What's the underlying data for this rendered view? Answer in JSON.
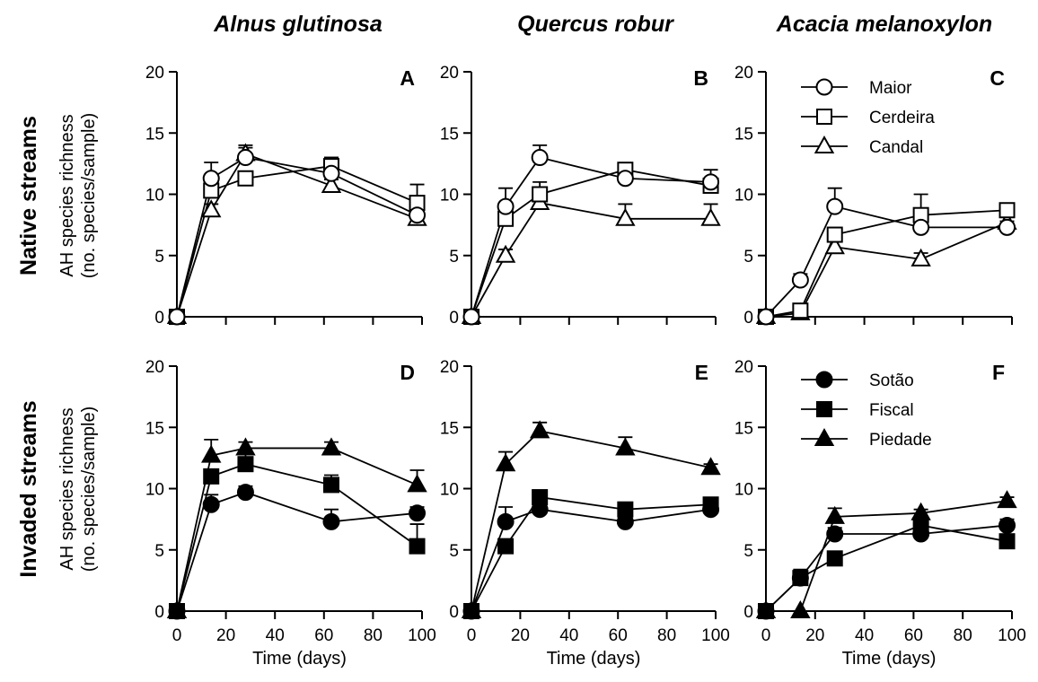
{
  "column_titles": [
    "Alnus glutinosa",
    "Quercus robur",
    "Acacia melanoxylon"
  ],
  "row_titles": [
    "Native streams",
    "Invaded streams"
  ],
  "ylabel_lines": [
    "AH species richness",
    "(no. species/sample)"
  ],
  "legend_native": [
    {
      "name": "Maior",
      "marker": "circle",
      "filled": false
    },
    {
      "name": "Cerdeira",
      "marker": "square",
      "filled": false
    },
    {
      "name": "Candal",
      "marker": "triangle",
      "filled": false
    }
  ],
  "legend_invaded": [
    {
      "name": "Sotão",
      "marker": "circle",
      "filled": true
    },
    {
      "name": "Fiscal",
      "marker": "square",
      "filled": true
    },
    {
      "name": "Piedade",
      "marker": "triangle",
      "filled": true
    }
  ],
  "chart_data": [
    {
      "panel": "A",
      "type": "line",
      "xlabel": "",
      "ylim": [
        0,
        20
      ],
      "xlim": [
        0,
        100
      ],
      "yticks": [
        0,
        5,
        10,
        15,
        20
      ],
      "xticks": [],
      "x": [
        0,
        14,
        28,
        63,
        98
      ],
      "series": [
        {
          "name": "Maior",
          "marker": "circle",
          "filled": false,
          "values": [
            0,
            11.3,
            13.0,
            11.7,
            8.3
          ],
          "err": [
            0,
            1.3,
            1.0,
            1.3,
            0.7
          ]
        },
        {
          "name": "Cerdeira",
          "marker": "square",
          "filled": false,
          "values": [
            0,
            10.3,
            11.3,
            12.3,
            9.3
          ],
          "err": [
            0,
            0.5,
            0.5,
            0.7,
            1.5
          ]
        },
        {
          "name": "Candal",
          "marker": "triangle",
          "filled": false,
          "values": [
            0,
            8.7,
            13.3,
            10.7,
            8.0
          ],
          "err": [
            0,
            0.5,
            0.5,
            0.5,
            0.5
          ]
        }
      ]
    },
    {
      "panel": "B",
      "type": "line",
      "xlabel": "",
      "ylim": [
        0,
        20
      ],
      "xlim": [
        0,
        100
      ],
      "yticks": [
        0,
        5,
        10,
        15,
        20
      ],
      "xticks": [],
      "x": [
        0,
        14,
        28,
        63,
        98
      ],
      "series": [
        {
          "name": "Maior",
          "marker": "circle",
          "filled": false,
          "values": [
            0,
            9.0,
            13.0,
            11.3,
            11.0
          ],
          "err": [
            0,
            1.5,
            1.0,
            0.5,
            1.0
          ]
        },
        {
          "name": "Cerdeira",
          "marker": "square",
          "filled": false,
          "values": [
            0,
            8.0,
            10.0,
            12.0,
            10.7
          ],
          "err": [
            0,
            0.5,
            1.0,
            0.5,
            0.5
          ]
        },
        {
          "name": "Candal",
          "marker": "triangle",
          "filled": false,
          "values": [
            0,
            5.0,
            9.3,
            8.0,
            8.0
          ],
          "err": [
            0,
            0.5,
            0.5,
            1.2,
            1.2
          ]
        }
      ]
    },
    {
      "panel": "C",
      "type": "line",
      "xlabel": "",
      "ylim": [
        0,
        20
      ],
      "xlim": [
        0,
        100
      ],
      "yticks": [
        0,
        5,
        10,
        15,
        20
      ],
      "xticks": [],
      "x": [
        0,
        14,
        28,
        63,
        98
      ],
      "series": [
        {
          "name": "Maior",
          "marker": "circle",
          "filled": false,
          "values": [
            0,
            3.0,
            9.0,
            7.3,
            7.3
          ],
          "err": [
            0,
            0.5,
            1.5,
            0.5,
            0.5
          ]
        },
        {
          "name": "Cerdeira",
          "marker": "square",
          "filled": false,
          "values": [
            0,
            0.5,
            6.7,
            8.3,
            8.7
          ],
          "err": [
            0,
            0.5,
            0.5,
            1.7,
            0.5
          ]
        },
        {
          "name": "Candal",
          "marker": "triangle",
          "filled": false,
          "values": [
            0,
            0.3,
            5.7,
            4.7,
            7.7
          ],
          "err": [
            0,
            0.3,
            0.5,
            0.5,
            0.5
          ]
        }
      ]
    },
    {
      "panel": "D",
      "type": "line",
      "xlabel": "Time (days)",
      "ylim": [
        0,
        20
      ],
      "xlim": [
        0,
        100
      ],
      "yticks": [
        0,
        5,
        10,
        15,
        20
      ],
      "xticks": [
        0,
        20,
        40,
        60,
        80,
        100
      ],
      "x": [
        0,
        14,
        28,
        63,
        98
      ],
      "series": [
        {
          "name": "Sotão",
          "marker": "circle",
          "filled": true,
          "values": [
            0,
            8.7,
            9.7,
            7.3,
            8.0
          ],
          "err": [
            0,
            0.8,
            0.5,
            1.0,
            0.5
          ]
        },
        {
          "name": "Fiscal",
          "marker": "square",
          "filled": true,
          "values": [
            0,
            11.0,
            12.0,
            10.3,
            5.3
          ],
          "err": [
            0,
            0.5,
            1.0,
            0.8,
            1.8
          ]
        },
        {
          "name": "Piedade",
          "marker": "triangle",
          "filled": true,
          "values": [
            0,
            12.7,
            13.3,
            13.3,
            10.3
          ],
          "err": [
            0,
            1.3,
            0.5,
            0.5,
            1.2
          ]
        }
      ]
    },
    {
      "panel": "E",
      "type": "line",
      "xlabel": "Time (days)",
      "ylim": [
        0,
        20
      ],
      "xlim": [
        0,
        100
      ],
      "yticks": [
        0,
        5,
        10,
        15,
        20
      ],
      "xticks": [
        0,
        20,
        40,
        60,
        80,
        100
      ],
      "x": [
        0,
        14,
        28,
        63,
        98
      ],
      "series": [
        {
          "name": "Sotão",
          "marker": "circle",
          "filled": true,
          "values": [
            0,
            7.3,
            8.3,
            7.3,
            8.3
          ],
          "err": [
            0,
            1.2,
            0.5,
            0.5,
            0.5
          ]
        },
        {
          "name": "Fiscal",
          "marker": "square",
          "filled": true,
          "values": [
            0,
            5.3,
            9.3,
            8.3,
            8.7
          ],
          "err": [
            0,
            0.5,
            0.5,
            0.5,
            0.3
          ]
        },
        {
          "name": "Piedade",
          "marker": "triangle",
          "filled": true,
          "values": [
            0,
            12.0,
            14.7,
            13.3,
            11.7
          ],
          "err": [
            0,
            1.0,
            0.7,
            0.9,
            0.3
          ]
        }
      ]
    },
    {
      "panel": "F",
      "type": "line",
      "xlabel": "Time (days)",
      "ylim": [
        0,
        20
      ],
      "xlim": [
        0,
        100
      ],
      "yticks": [
        0,
        5,
        10,
        15,
        20
      ],
      "xticks": [
        0,
        20,
        40,
        60,
        80,
        100
      ],
      "x": [
        0,
        14,
        28,
        63,
        98
      ],
      "series": [
        {
          "name": "Sotão",
          "marker": "circle",
          "filled": true,
          "values": [
            0,
            2.7,
            6.3,
            6.3,
            7.0
          ],
          "err": [
            0,
            0.5,
            0.5,
            0.5,
            0.5
          ]
        },
        {
          "name": "Fiscal",
          "marker": "square",
          "filled": true,
          "values": [
            0,
            2.7,
            4.3,
            7.0,
            5.7
          ],
          "err": [
            0,
            0.7,
            0.5,
            0.5,
            0.5
          ]
        },
        {
          "name": "Piedade",
          "marker": "triangle",
          "filled": true,
          "values": [
            0,
            0,
            7.7,
            8.0,
            9.0
          ],
          "err": [
            0,
            0,
            0.7,
            0.3,
            0.3
          ]
        }
      ]
    }
  ]
}
